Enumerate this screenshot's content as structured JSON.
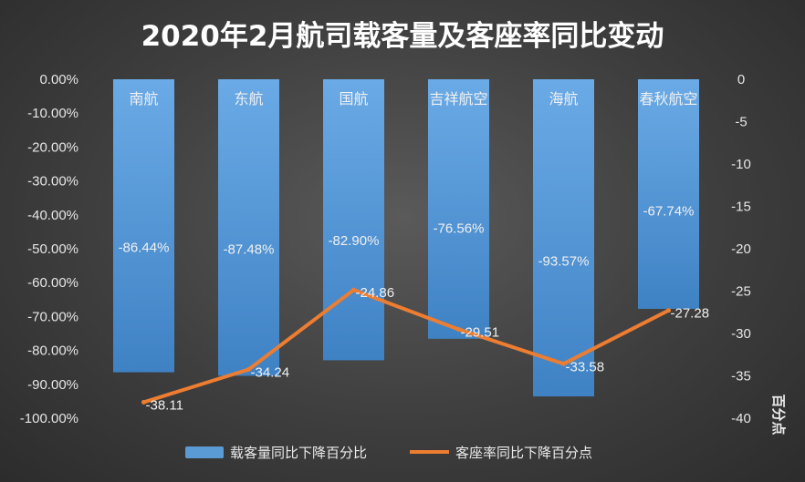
{
  "chart_data": {
    "type": "bar",
    "title": "2020年2月航司载客量及客座率同比变动",
    "categories": [
      "南航",
      "东航",
      "国航",
      "吉祥航空",
      "海航",
      "春秋航空"
    ],
    "series": [
      {
        "name": "载客量同比下降百分比",
        "type": "bar",
        "axis": "left",
        "values": [
          -86.44,
          -87.48,
          -82.9,
          -76.56,
          -93.57,
          -67.74
        ],
        "labels": [
          "-86.44%",
          "-87.48%",
          "-82.90%",
          "-76.56%",
          "-93.57%",
          "-67.74%"
        ],
        "color": "#5b9bd5"
      },
      {
        "name": "客座率同比下降百分点",
        "type": "line",
        "axis": "right",
        "values": [
          -38.11,
          -34.24,
          -24.86,
          -29.51,
          -33.58,
          -27.28
        ],
        "labels": [
          "-38.11",
          "-34.24",
          "-24.86",
          "-29.51",
          "-33.58",
          "-27.28"
        ],
        "color": "#ed7d31"
      }
    ],
    "y_left": {
      "min": -100,
      "max": 0,
      "ticks": [
        "0.00%",
        "-10.00%",
        "-20.00%",
        "-30.00%",
        "-40.00%",
        "-50.00%",
        "-60.00%",
        "-70.00%",
        "-80.00%",
        "-90.00%",
        "-100.00%"
      ]
    },
    "y_right": {
      "min": -40,
      "max": 0,
      "label": "百分点",
      "ticks": [
        "0",
        "-5",
        "-10",
        "-15",
        "-20",
        "-25",
        "-30",
        "-35",
        "-40"
      ]
    },
    "grid": false,
    "legend_position": "bottom"
  }
}
